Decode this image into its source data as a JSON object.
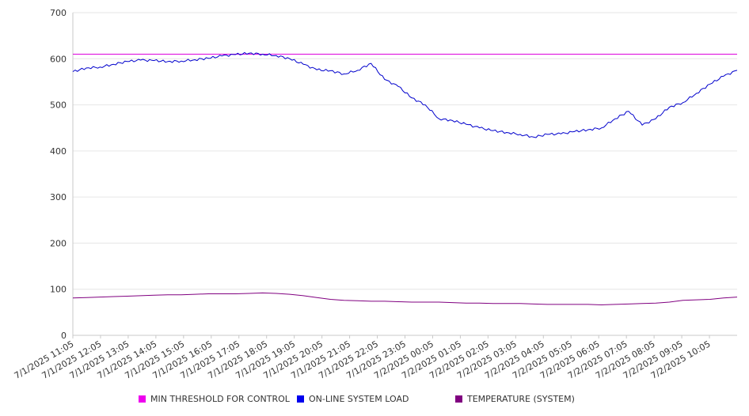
{
  "colors": {
    "threshold": "#dd00dd",
    "load": "#0000cc",
    "temperature": "#800080"
  },
  "legend": [
    {
      "label": "MIN THRESHOLD FOR CONTROL",
      "color": "#ee00ee"
    },
    {
      "label": "ON-LINE SYSTEM LOAD",
      "color": "#0000ee"
    },
    {
      "label": "TEMPERATURE (SYSTEM)",
      "color": "#800080"
    }
  ],
  "chart_data": {
    "type": "line",
    "title": "",
    "xlabel": "",
    "ylabel": "",
    "ylim": [
      0,
      700
    ],
    "yticks": [
      0,
      100,
      200,
      300,
      400,
      500,
      600,
      700
    ],
    "grid": "horizontal",
    "legend_position": "bottom",
    "x_tick_labels": [
      "7/1/2025 11:05",
      "7/1/2025 12:05",
      "7/1/2025 13:05",
      "7/1/2025 14:05",
      "7/1/2025 15:05",
      "7/1/2025 16:05",
      "7/1/2025 17:05",
      "7/1/2025 18:05",
      "7/1/2025 19:05",
      "7/1/2025 20:05",
      "7/1/2025 21:05",
      "7/1/2025 22:05",
      "7/1/2025 23:05",
      "7/2/2025 00:05",
      "7/2/2025 01:05",
      "7/2/2025 02:05",
      "7/2/2025 03:05",
      "7/2/2025 04:05",
      "7/2/2025 05:05",
      "7/2/2025 06:05",
      "7/2/2025 07:05",
      "7/2/2025 08:05",
      "7/2/2025 09:05",
      "7/2/2025 10:05"
    ],
    "x": [
      "7/1/2025 11:05",
      "7/1/2025 11:35",
      "7/1/2025 12:05",
      "7/1/2025 12:35",
      "7/1/2025 13:05",
      "7/1/2025 13:35",
      "7/1/2025 14:05",
      "7/1/2025 14:35",
      "7/1/2025 15:05",
      "7/1/2025 15:35",
      "7/1/2025 16:05",
      "7/1/2025 16:35",
      "7/1/2025 17:05",
      "7/1/2025 17:35",
      "7/1/2025 18:05",
      "7/1/2025 18:35",
      "7/1/2025 19:05",
      "7/1/2025 19:35",
      "7/1/2025 20:05",
      "7/1/2025 20:35",
      "7/1/2025 21:05",
      "7/1/2025 21:35",
      "7/1/2025 22:05",
      "7/1/2025 22:20",
      "7/1/2025 22:35",
      "7/1/2025 23:05",
      "7/1/2025 23:35",
      "7/2/2025 00:05",
      "7/2/2025 00:35",
      "7/2/2025 01:05",
      "7/2/2025 01:35",
      "7/2/2025 02:05",
      "7/2/2025 02:35",
      "7/2/2025 03:05",
      "7/2/2025 03:35",
      "7/2/2025 04:05",
      "7/2/2025 04:35",
      "7/2/2025 05:05",
      "7/2/2025 05:35",
      "7/2/2025 06:05",
      "7/2/2025 06:35",
      "7/2/2025 07:05",
      "7/2/2025 07:15",
      "7/2/2025 07:35",
      "7/2/2025 08:05",
      "7/2/2025 08:35",
      "7/2/2025 09:05",
      "7/2/2025 09:35",
      "7/2/2025 10:05",
      "7/2/2025 10:35"
    ],
    "series": [
      {
        "name": "MIN THRESHOLD FOR CONTROL",
        "values": [
          610,
          610,
          610,
          610,
          610,
          610,
          610,
          610,
          610,
          610,
          610,
          610,
          610,
          610,
          610,
          610,
          610,
          610,
          610,
          610,
          610,
          610,
          610,
          610,
          610,
          610,
          610,
          610,
          610,
          610,
          610,
          610,
          610,
          610,
          610,
          610,
          610,
          610,
          610,
          610,
          610,
          610,
          610,
          610,
          610,
          610,
          610,
          610,
          610,
          610
        ]
      },
      {
        "name": "ON-LINE SYSTEM LOAD",
        "values": [
          572,
          580,
          582,
          588,
          594,
          597,
          596,
          594,
          595,
          598,
          601,
          606,
          609,
          612,
          610,
          607,
          600,
          588,
          576,
          574,
          567,
          575,
          590,
          555,
          540,
          515,
          500,
          470,
          466,
          458,
          450,
          444,
          440,
          436,
          430,
          436,
          437,
          442,
          446,
          450,
          470,
          486,
          456,
          470,
          495,
          505,
          525,
          545,
          562,
          575
        ]
      },
      {
        "name": "TEMPERATURE (SYSTEM)",
        "values": [
          81,
          82,
          83,
          84,
          85,
          86,
          87,
          88,
          88,
          89,
          90,
          90,
          90,
          91,
          92,
          91,
          89,
          86,
          82,
          78,
          76,
          75,
          74,
          74,
          73,
          72,
          72,
          72,
          71,
          70,
          70,
          69,
          69,
          69,
          68,
          67,
          67,
          67,
          67,
          66,
          67,
          68,
          69,
          70,
          72,
          76,
          77,
          78,
          81,
          83
        ]
      }
    ]
  }
}
